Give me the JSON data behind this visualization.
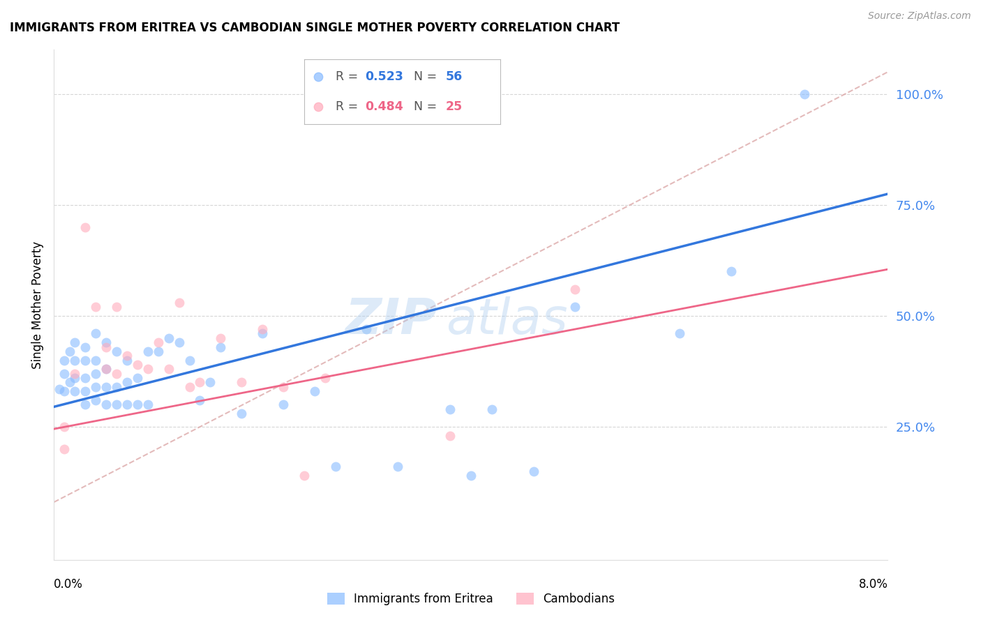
{
  "title": "IMMIGRANTS FROM ERITREA VS CAMBODIAN SINGLE MOTHER POVERTY CORRELATION CHART",
  "source": "Source: ZipAtlas.com",
  "ylabel": "Single Mother Poverty",
  "ytick_labels": [
    "25.0%",
    "50.0%",
    "75.0%",
    "100.0%"
  ],
  "ytick_values": [
    0.25,
    0.5,
    0.75,
    1.0
  ],
  "xlim": [
    0.0,
    0.08
  ],
  "ylim": [
    -0.05,
    1.1
  ],
  "legend_r1_label": "R = ",
  "legend_r1_val": "0.523",
  "legend_n1_label": "N = ",
  "legend_n1_val": "56",
  "legend_r2_label": "R = ",
  "legend_r2_val": "0.484",
  "legend_n2_label": "N = ",
  "legend_n2_val": "25",
  "color_eritrea": "#88BBFF",
  "color_cambodian": "#FFAABB",
  "color_trend_eritrea": "#3377DD",
  "color_trend_cambodian": "#EE6688",
  "color_watermark": "#AACCEE",
  "watermark_text": "ZIPAtlas",
  "eritrea_x": [
    0.0005,
    0.001,
    0.001,
    0.001,
    0.0015,
    0.0015,
    0.002,
    0.002,
    0.002,
    0.002,
    0.003,
    0.003,
    0.003,
    0.003,
    0.003,
    0.004,
    0.004,
    0.004,
    0.004,
    0.004,
    0.005,
    0.005,
    0.005,
    0.005,
    0.006,
    0.006,
    0.006,
    0.007,
    0.007,
    0.007,
    0.008,
    0.008,
    0.009,
    0.009,
    0.01,
    0.011,
    0.012,
    0.013,
    0.014,
    0.015,
    0.016,
    0.018,
    0.02,
    0.022,
    0.025,
    0.027,
    0.03,
    0.033,
    0.038,
    0.04,
    0.042,
    0.046,
    0.05,
    0.06,
    0.065,
    0.072
  ],
  "eritrea_y": [
    0.335,
    0.33,
    0.37,
    0.4,
    0.35,
    0.42,
    0.33,
    0.36,
    0.4,
    0.44,
    0.3,
    0.33,
    0.36,
    0.4,
    0.43,
    0.31,
    0.34,
    0.37,
    0.4,
    0.46,
    0.3,
    0.34,
    0.38,
    0.44,
    0.3,
    0.34,
    0.42,
    0.3,
    0.35,
    0.4,
    0.3,
    0.36,
    0.3,
    0.42,
    0.42,
    0.45,
    0.44,
    0.4,
    0.31,
    0.35,
    0.43,
    0.28,
    0.46,
    0.3,
    0.33,
    0.16,
    0.47,
    0.16,
    0.29,
    0.14,
    0.29,
    0.15,
    0.52,
    0.46,
    0.6,
    1.0
  ],
  "cambodian_x": [
    0.001,
    0.001,
    0.002,
    0.003,
    0.004,
    0.005,
    0.005,
    0.006,
    0.006,
    0.007,
    0.008,
    0.009,
    0.01,
    0.011,
    0.012,
    0.013,
    0.014,
    0.016,
    0.018,
    0.02,
    0.022,
    0.024,
    0.026,
    0.038,
    0.05
  ],
  "cambodian_y": [
    0.25,
    0.2,
    0.37,
    0.7,
    0.52,
    0.43,
    0.38,
    0.37,
    0.52,
    0.41,
    0.39,
    0.38,
    0.44,
    0.38,
    0.53,
    0.34,
    0.35,
    0.45,
    0.35,
    0.47,
    0.34,
    0.14,
    0.36,
    0.23,
    0.56
  ],
  "eritrea_trend_x": [
    0.0,
    0.08
  ],
  "eritrea_trend_y": [
    0.295,
    0.775
  ],
  "cambodian_trend_x": [
    0.0,
    0.08
  ],
  "cambodian_trend_y": [
    0.245,
    0.605
  ],
  "diag_line_x": [
    0.0,
    0.08
  ],
  "diag_line_y": [
    0.08,
    1.05
  ],
  "bottom_legend_labels": [
    "Immigrants from Eritrea",
    "Cambodians"
  ]
}
